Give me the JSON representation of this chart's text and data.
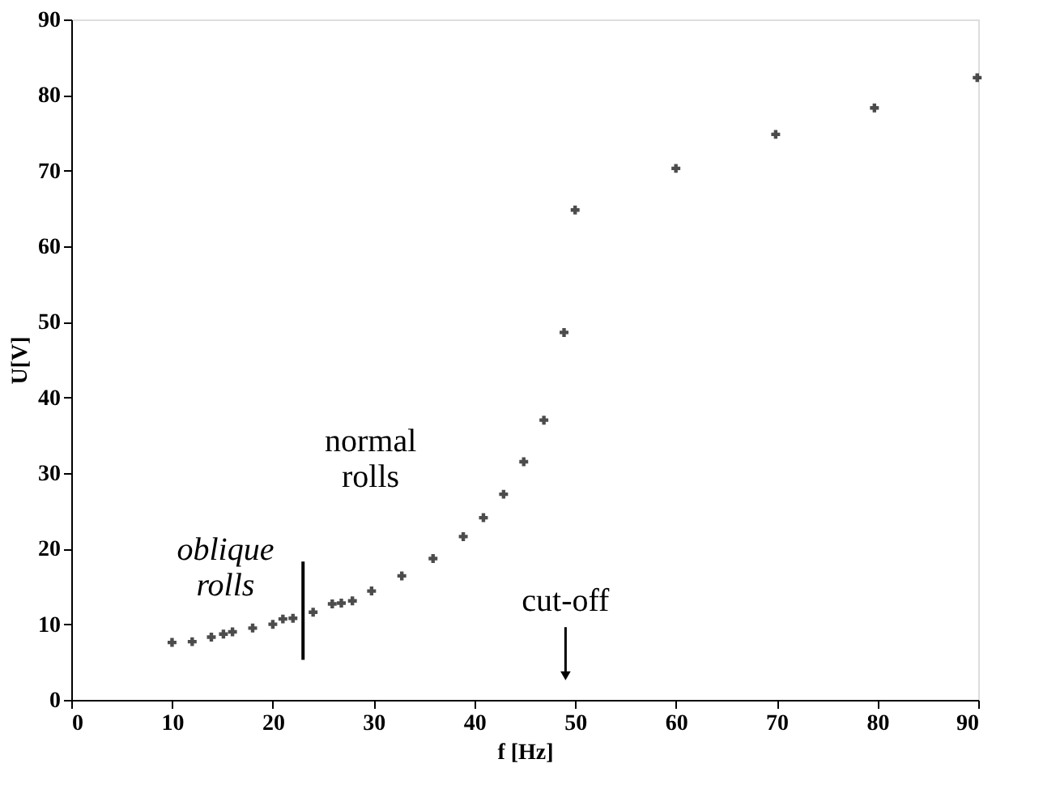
{
  "chart_data": {
    "type": "scatter",
    "xlabel": "f [Hz]",
    "ylabel": "U[V]",
    "xlim": [
      0,
      90
    ],
    "xticks": [
      0,
      10,
      20,
      30,
      40,
      50,
      60,
      70,
      80,
      90
    ],
    "ylim": [
      0,
      90
    ],
    "yticks": [
      0,
      10,
      20,
      30,
      40,
      50,
      60,
      70,
      80,
      90
    ],
    "grid": false,
    "marker": "cross",
    "series": [
      {
        "color": "#000000",
        "x": [
          10,
          12,
          13.9,
          15.1,
          16,
          18,
          20,
          21,
          22,
          24,
          25.9,
          26.8,
          27.9,
          29.8,
          32.8,
          35.9,
          38.9,
          40.9,
          42.9,
          44.9,
          46.9,
          48.9,
          50,
          60,
          69.9,
          79.7,
          89.9
        ],
        "values": [
          7.6,
          7.7,
          8.3,
          8.7,
          9.0,
          9.5,
          10.0,
          10.7,
          10.8,
          11.6,
          12.7,
          12.8,
          13.1,
          14.4,
          16.4,
          18.7,
          21.6,
          24.1,
          27.2,
          31.5,
          37.0,
          48.6,
          64.8,
          70.3,
          74.8,
          78.3,
          82.3
        ]
      },
      {
        "type": "bar",
        "color": "#000000",
        "x": [
          23
        ],
        "base": [
          5.3
        ],
        "values": [
          13.0
        ]
      }
    ],
    "annotations": [
      "oblique rolls",
      "normal rolls",
      "cut-off"
    ]
  }
}
